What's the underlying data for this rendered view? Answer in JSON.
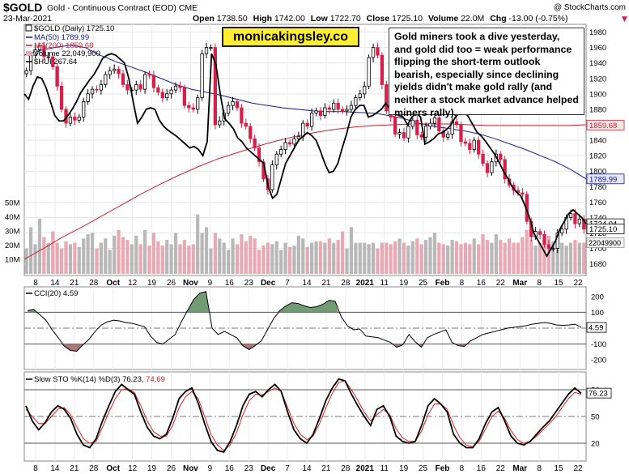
{
  "header": {
    "symbol": "$GOLD",
    "name": "Gold - Continuous Contract (EOD)",
    "exchange": "CME",
    "date": "23-Mar-2021",
    "open_label": "Open",
    "open": "1738.50",
    "high_label": "High",
    "high": "1742.00",
    "low_label": "Low",
    "low": "1722.70",
    "close_label": "Close",
    "close": "1725.10",
    "volume_label": "Volume",
    "volume": "22.0M",
    "chg_label": "Chg",
    "chg": "-13.00 (-0.75%)",
    "chg_arrow": "▼",
    "watermark": "@ StockCharts.com"
  },
  "legend": {
    "gold": "$GOLD (Daily) 1725.10",
    "ma50": "MA(50) 1789.99",
    "ma200": "MA(200) 1859.68",
    "volume": "Volume 22,049,900",
    "hui": "$HUI 267.64"
  },
  "brand_box": "monicakingsley.co",
  "annotation": "Gold miners took a dive yesterday, and gold did too = weak performance flipping the short-term outlook bearish, especially since declining yields  didn't make gold rally (and neither a stock market advance helped miners rally).",
  "price_axis": {
    "ticks": [
      "1980",
      "1960",
      "1940",
      "1920",
      "1900",
      "1880",
      "1860",
      "1840",
      "1820",
      "1800",
      "1780",
      "1760",
      "1740",
      "1720",
      "1700",
      "1680"
    ],
    "tags": {
      "ma200": "1859.68",
      "ma50": "1789.99",
      "last": "1725.10",
      "hui_tag": "1724.04",
      "volume": "22049900"
    }
  },
  "volume_axis": {
    "ticks": [
      "50M",
      "40M",
      "30M",
      "20M",
      "10M"
    ]
  },
  "x_axis": {
    "labels": [
      {
        "t": "8",
        "b": false
      },
      {
        "t": "14",
        "b": false
      },
      {
        "t": "21",
        "b": false
      },
      {
        "t": "28",
        "b": false
      },
      {
        "t": "Oct",
        "b": true
      },
      {
        "t": "12",
        "b": false
      },
      {
        "t": "19",
        "b": false
      },
      {
        "t": "26",
        "b": false
      },
      {
        "t": "Nov",
        "b": true
      },
      {
        "t": "9",
        "b": false
      },
      {
        "t": "16",
        "b": false
      },
      {
        "t": "23",
        "b": false
      },
      {
        "t": "Dec",
        "b": true
      },
      {
        "t": "7",
        "b": false
      },
      {
        "t": "14",
        "b": false
      },
      {
        "t": "21",
        "b": false
      },
      {
        "t": "28",
        "b": false
      },
      {
        "t": "2021",
        "b": true
      },
      {
        "t": "11",
        "b": false
      },
      {
        "t": "19",
        "b": false
      },
      {
        "t": "25",
        "b": false
      },
      {
        "t": "Feb",
        "b": true
      },
      {
        "t": "8",
        "b": false
      },
      {
        "t": "16",
        "b": false
      },
      {
        "t": "22",
        "b": false
      },
      {
        "t": "Mar",
        "b": true
      },
      {
        "t": "8",
        "b": false
      },
      {
        "t": "15",
        "b": false
      },
      {
        "t": "22",
        "b": false
      }
    ]
  },
  "cci": {
    "label": "CCI(20) 4.59",
    "ticks": [
      "200",
      "100",
      "0",
      "-100",
      "-200"
    ],
    "tag": "4.59"
  },
  "sto": {
    "label_k": "Slow STO %K(14) %D(3) 76.23,",
    "label_d": "74.69",
    "ticks": [
      "80",
      "50",
      "20"
    ],
    "tag": "76.23"
  },
  "colors": {
    "up": "#000000",
    "down": "#d6204a",
    "ma50": "#1a1a8c",
    "ma200": "#cc2233",
    "hui": "#000000",
    "vol_up": "#b8b8b8",
    "vol_down": "#e8a8b4",
    "cci_fill": "#a06060",
    "cci_fill_hi": "#5a8a5a",
    "sto_d": "#e02020"
  },
  "chart_data": [
    {
      "type": "candlestick",
      "title": "$GOLD (Daily)",
      "ylim": [
        1665,
        1990
      ],
      "series": [
        {
          "name": "$GOLD (Daily)",
          "close": [
            1930,
            1950,
            1957,
            1962,
            1948,
            1948,
            1935,
            1910,
            1880,
            1862,
            1870,
            1866,
            1870,
            1890,
            1900,
            1906,
            1905,
            1912,
            1925,
            1930,
            1932,
            1926,
            1912,
            1905,
            1905,
            1912,
            1906,
            1925,
            1924,
            1908,
            1902,
            1895,
            1900,
            1905,
            1910,
            1908,
            1885,
            1882,
            1880,
            1895,
            1952,
            1960,
            1960,
            1860,
            1865,
            1875,
            1885,
            1890,
            1882,
            1862,
            1858,
            1842,
            1830,
            1812,
            1790,
            1776,
            1808,
            1822,
            1828,
            1837,
            1835,
            1842,
            1845,
            1862,
            1858,
            1875,
            1878,
            1872,
            1882,
            1880,
            1888,
            1880,
            1878,
            1880,
            1885,
            1895,
            1900,
            1910,
            1947,
            1960,
            1950,
            1912,
            1878,
            1870,
            1848,
            1850,
            1843,
            1858,
            1866,
            1847,
            1844,
            1858,
            1862,
            1869,
            1852,
            1844,
            1848,
            1864,
            1860,
            1838,
            1836,
            1828,
            1840,
            1822,
            1810,
            1798,
            1812,
            1822,
            1815,
            1790,
            1782,
            1775,
            1772,
            1770,
            1735,
            1715,
            1722,
            1718,
            1705,
            1700,
            1700,
            1720,
            1725,
            1740,
            1745,
            1732,
            1738,
            1725
          ]
        },
        {
          "name": "MA(50)",
          "close": [
            1950,
            1956,
            1960,
            1963,
            1960,
            1950,
            1942,
            1935,
            1928,
            1920,
            1912,
            1906,
            1902,
            1898,
            1893,
            1888,
            1885,
            1882,
            1880,
            1878,
            1877,
            1877,
            1876,
            1875,
            1872,
            1868,
            1862,
            1858,
            1855,
            1852,
            1848,
            1842,
            1835,
            1828,
            1820,
            1812,
            1802,
            1790
          ]
        },
        {
          "name": "MA(200)",
          "close": [
            1686,
            1700,
            1715,
            1728,
            1742,
            1756,
            1770,
            1783,
            1795,
            1806,
            1816,
            1824,
            1832,
            1839,
            1845,
            1850,
            1854,
            1857,
            1859,
            1860,
            1861,
            1861,
            1861,
            1860,
            1859,
            1859,
            1859,
            1859,
            1859,
            1860
          ]
        },
        {
          "name": "$HUI",
          "close": [
            1900,
            1893,
            1910,
            1922,
            1920,
            1908,
            1890,
            1872,
            1865,
            1865,
            1872,
            1880,
            1890,
            1902,
            1910,
            1918,
            1925,
            1935,
            1946,
            1950,
            1952,
            1950,
            1945,
            1940,
            1920,
            1890,
            1862,
            1870,
            1880,
            1882,
            1880,
            1866,
            1858,
            1853,
            1849,
            1845,
            1840,
            1835,
            1830,
            1832,
            1828,
            1820,
            1838,
            1952,
            1938,
            1900,
            1868,
            1862,
            1855,
            1843,
            1838,
            1830,
            1825,
            1820,
            1815,
            1810,
            1780,
            1765,
            1770,
            1790,
            1810,
            1820,
            1830,
            1840,
            1845,
            1850,
            1846,
            1840,
            1826,
            1810,
            1798,
            1800,
            1810,
            1830,
            1848,
            1870,
            1880,
            1885,
            1885,
            1870,
            1872,
            1876,
            1880,
            1888,
            1880,
            1875,
            1872,
            1870,
            1860,
            1870,
            1875,
            1870,
            1835,
            1838,
            1842,
            1848,
            1850,
            1854,
            1860,
            1870,
            1875,
            1879,
            1870,
            1860,
            1850,
            1845,
            1838,
            1830,
            1822,
            1812,
            1800,
            1791,
            1780,
            1773,
            1768,
            1755,
            1740,
            1720,
            1710,
            1700,
            1690,
            1700,
            1710,
            1725,
            1735,
            1745,
            1750,
            1745,
            1740,
            1732
          ]
        }
      ]
    },
    {
      "type": "bar",
      "title": "Volume",
      "ylim": [
        0,
        55000000
      ],
      "series": [
        {
          "name": "Volume",
          "values": [
            18,
            33,
            21,
            39,
            26,
            22,
            30,
            22,
            18,
            23,
            21,
            22,
            19,
            25,
            28,
            29,
            18,
            22,
            25,
            17,
            27,
            31,
            26,
            24,
            21,
            27,
            21,
            31,
            20,
            29,
            23,
            20,
            24,
            21,
            29,
            21,
            24,
            20,
            21,
            42,
            29,
            33,
            18,
            29,
            25,
            22,
            17,
            25,
            21,
            28,
            23,
            27,
            25,
            17,
            20,
            22,
            21,
            23,
            17,
            22,
            19,
            20,
            27,
            25,
            19,
            22,
            23,
            23,
            22,
            25,
            22,
            24,
            30,
            18,
            33,
            22,
            22,
            22,
            21,
            22,
            18,
            22,
            22,
            21,
            23,
            25,
            22,
            20,
            23,
            25,
            21,
            24,
            26,
            29,
            22,
            21,
            20,
            24,
            23,
            21,
            22,
            21,
            25,
            21,
            28,
            24,
            22,
            28,
            24,
            22,
            25,
            22,
            22,
            26,
            31,
            24,
            20,
            22,
            24,
            27,
            23,
            27,
            22,
            20,
            22,
            24,
            22,
            22
          ]
        }
      ]
    },
    {
      "type": "line",
      "title": "CCI(20)",
      "ylim": [
        -260,
        260
      ],
      "series": [
        {
          "name": "CCI(20)",
          "values": [
            110,
            118,
            85,
            50,
            -10,
            -60,
            -115,
            -140,
            -145,
            -105,
            -70,
            -20,
            20,
            40,
            50,
            45,
            35,
            30,
            20,
            10,
            -50,
            -90,
            -100,
            -70,
            -40,
            40,
            110,
            180,
            220,
            230,
            0,
            -40,
            -20,
            -40,
            -60,
            -110,
            -135,
            -110,
            -80,
            -10,
            60,
            110,
            140,
            160,
            155,
            140,
            130,
            135,
            150,
            175,
            170,
            70,
            15,
            -10,
            -5,
            -50,
            -55,
            -60,
            -75,
            -90,
            -120,
            -105,
            -40,
            -85,
            -120,
            -60,
            -40,
            -25,
            -10,
            -90,
            -110,
            -115,
            -80,
            -60,
            -40,
            -30,
            -20,
            -10,
            0,
            5,
            10,
            15,
            25,
            30,
            35,
            30,
            20,
            18,
            20,
            25,
            5
          ]
        }
      ]
    },
    {
      "type": "line",
      "title": "Slow STO %K(14) %D(3)",
      "ylim": [
        0,
        100
      ],
      "series": [
        {
          "name": "%K",
          "values": [
            62,
            45,
            35,
            43,
            55,
            62,
            58,
            48,
            30,
            18,
            15,
            25,
            45,
            62,
            78,
            86,
            80,
            75,
            55,
            38,
            28,
            25,
            30,
            48,
            70,
            78,
            82,
            65,
            42,
            22,
            12,
            10,
            22,
            40,
            62,
            75,
            78,
            72,
            80,
            86,
            78,
            55,
            35,
            25,
            20,
            30,
            48,
            68,
            82,
            92,
            90,
            75,
            62,
            50,
            40,
            58,
            62,
            50,
            28,
            22,
            20,
            22,
            40,
            62,
            70,
            64,
            55,
            30,
            20,
            15,
            15,
            25,
            42,
            55,
            60,
            45,
            28,
            20,
            18,
            22,
            30,
            38,
            45,
            55,
            65,
            75,
            82,
            76
          ]
        },
        {
          "name": "%D",
          "values": [
            58,
            50,
            42,
            42,
            50,
            58,
            60,
            52,
            38,
            25,
            20,
            22,
            38,
            55,
            70,
            80,
            81,
            77,
            62,
            45,
            33,
            28,
            28,
            40,
            60,
            72,
            78,
            70,
            50,
            30,
            18,
            12,
            18,
            32,
            52,
            68,
            75,
            74,
            78,
            82,
            78,
            60,
            42,
            30,
            24,
            28,
            42,
            60,
            76,
            88,
            90,
            80,
            68,
            55,
            45,
            52,
            58,
            52,
            36,
            26,
            22,
            22,
            34,
            52,
            64,
            64,
            58,
            40,
            26,
            18,
            16,
            22,
            36,
            50,
            56,
            48,
            34,
            24,
            20,
            22,
            28,
            35,
            42,
            50,
            60,
            70,
            77,
            75
          ]
        }
      ]
    }
  ]
}
